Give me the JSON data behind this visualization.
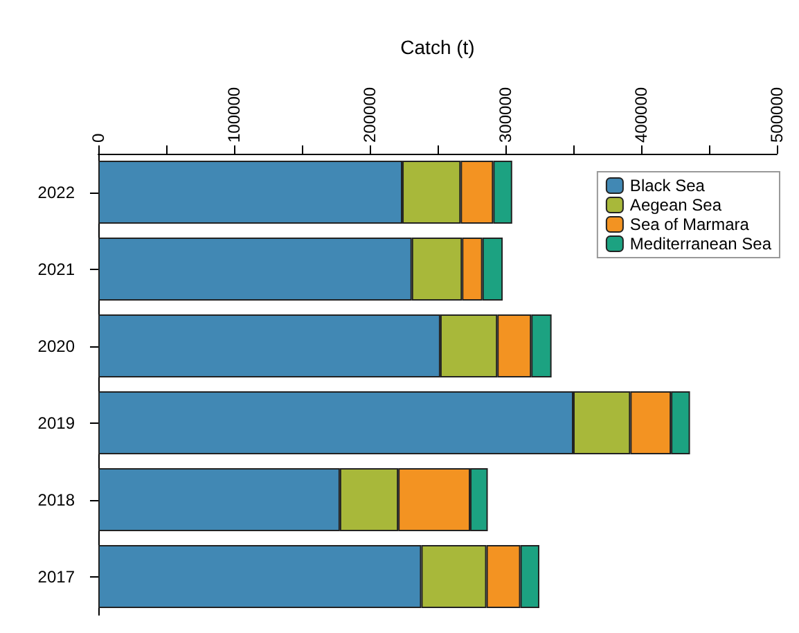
{
  "chart_data": {
    "type": "bar",
    "orientation": "horizontal",
    "stacked": true,
    "xlabel": "Catch (t)",
    "categories": [
      "2022",
      "2021",
      "2020",
      "2019",
      "2018",
      "2017"
    ],
    "series": [
      {
        "name": "Black Sea",
        "color": "#4188b4",
        "values": [
          224000,
          231000,
          252000,
          350000,
          178000,
          238000
        ]
      },
      {
        "name": "Aegean Sea",
        "color": "#a8b83a",
        "values": [
          43000,
          37000,
          42000,
          42000,
          43000,
          48000
        ]
      },
      {
        "name": "Sea of Marmara",
        "color": "#f39322",
        "values": [
          24000,
          15000,
          25000,
          30000,
          53000,
          25000
        ]
      },
      {
        "name": "Mediterranean Sea",
        "color": "#1ca281",
        "values": [
          14000,
          15000,
          15000,
          14000,
          13000,
          14000
        ]
      }
    ],
    "xlim": [
      0,
      500000
    ],
    "xticks": [
      0,
      {
        "value": 50000,
        "label": null
      },
      100000,
      {
        "value": 150000,
        "label": null
      },
      200000,
      {
        "value": 250000,
        "label": null
      },
      300000,
      {
        "value": 350000,
        "label": null
      },
      400000,
      {
        "value": 450000,
        "label": null
      },
      500000
    ],
    "grid": false,
    "legend": "top right"
  }
}
